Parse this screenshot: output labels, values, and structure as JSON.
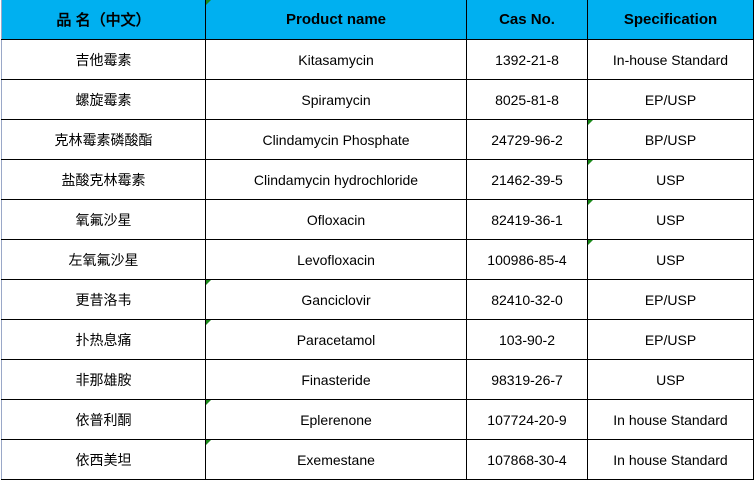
{
  "headers": [
    "品 名（中文）",
    "Product name",
    "Cas No.",
    "Specification"
  ],
  "rows": [
    {
      "cn": "吉他霉素",
      "name": "Kitasamycin",
      "cas": "1392-21-8",
      "spec": "In-house Standard"
    },
    {
      "cn": "螺旋霉素",
      "name": "Spiramycin",
      "cas": "8025-81-8",
      "spec": "EP/USP"
    },
    {
      "cn": "克林霉素磷酸酯",
      "name": "Clindamycin Phosphate",
      "cas": "24729-96-2",
      "spec": "BP/USP"
    },
    {
      "cn": "盐酸克林霉素",
      "name": "Clindamycin hydrochloride",
      "cas": "21462-39-5",
      "spec": "USP"
    },
    {
      "cn": "氧氟沙星",
      "name": "Ofloxacin",
      "cas": "82419-36-1",
      "spec": "USP"
    },
    {
      "cn": "左氧氟沙星",
      "name": "Levofloxacin",
      "cas": "100986-85-4",
      "spec": "USP"
    },
    {
      "cn": "更昔洛韦",
      "name": "Ganciclovir",
      "cas": "82410-32-0",
      "spec": "EP/USP"
    },
    {
      "cn": "扑热息痛",
      "name": "Paracetamol",
      "cas": "103-90-2",
      "spec": "EP/USP"
    },
    {
      "cn": "非那雄胺",
      "name": "Finasteride",
      "cas": "98319-26-7",
      "spec": "USP"
    },
    {
      "cn": "依普利酮",
      "name": "Eplerenone",
      "cas": "107724-20-9",
      "spec": "In house Standard"
    },
    {
      "cn": "依西美坦",
      "name": "Exemestane",
      "cas": "107868-30-4",
      "spec": "In house Standard"
    }
  ],
  "colors": {
    "header_bg": "#00B0F0",
    "comment_marker": "#1a8a1a"
  }
}
